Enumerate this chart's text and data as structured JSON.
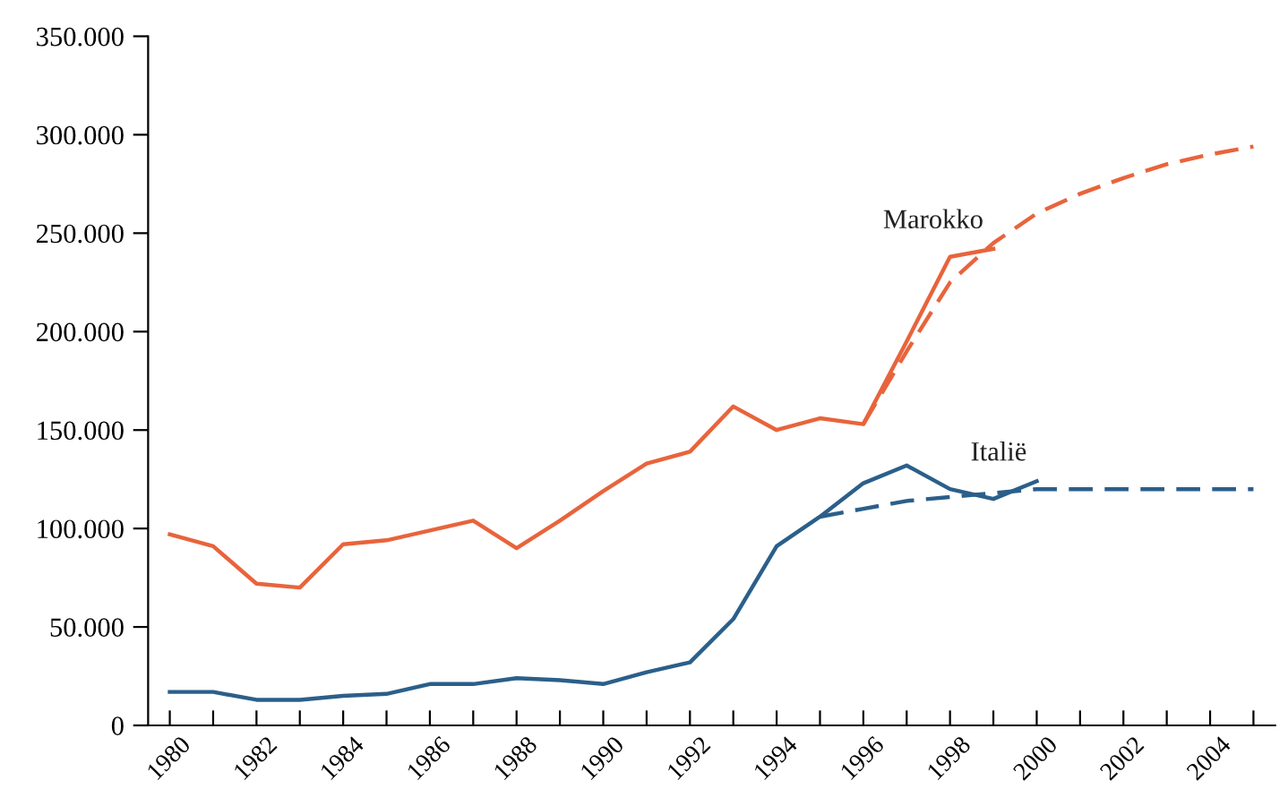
{
  "chart_data": {
    "type": "line",
    "x": [
      1980,
      1981,
      1982,
      1983,
      1984,
      1985,
      1986,
      1987,
      1988,
      1989,
      1990,
      1991,
      1992,
      1993,
      1994,
      1995,
      1996,
      1997,
      1998,
      1999,
      2000
    ],
    "series": [
      {
        "name": "Marokko",
        "color": "#e8643c",
        "line_style": "solid",
        "x": [
          1980,
          1981,
          1982,
          1983,
          1984,
          1985,
          1986,
          1987,
          1988,
          1989,
          1990,
          1991,
          1992,
          1993,
          1994,
          1995,
          1996,
          1997,
          1998,
          1999
        ],
        "values": [
          97000,
          91000,
          72000,
          70000,
          92000,
          94000,
          99000,
          104000,
          90000,
          104000,
          119000,
          133000,
          139000,
          162000,
          150000,
          156000,
          153000,
          195000,
          238000,
          242000
        ]
      },
      {
        "color": "#e8643c",
        "line_style": "dashed",
        "x": [
          1996,
          1997,
          1998,
          1999,
          2000,
          2001,
          2002,
          2003,
          2004,
          2005
        ],
        "values": [
          153000,
          190000,
          225000,
          245000,
          260000,
          270000,
          278000,
          285000,
          290000,
          294000
        ]
      },
      {
        "name": "Italië",
        "color": "#2b5f8a",
        "line_style": "solid",
        "values": [
          17000,
          17000,
          13000,
          13000,
          15000,
          16000,
          21000,
          21000,
          24000,
          23000,
          21000,
          27000,
          32000,
          54000,
          91000,
          106000,
          123000,
          132000,
          120000,
          115000,
          124000
        ]
      },
      {
        "color": "#2b5f8a",
        "line_style": "dashed",
        "x": [
          1995,
          1996,
          1997,
          1998,
          1999,
          2000,
          2005
        ],
        "values": [
          106000,
          110000,
          114000,
          116000,
          118000,
          120000,
          120000
        ]
      }
    ],
    "xlim": [
      1979.5,
      2005.5
    ],
    "xticks": [
      1980,
      {
        "value": 1981,
        "label": null
      },
      1982,
      {
        "value": 1983,
        "label": null
      },
      1984,
      {
        "value": 1985,
        "label": null
      },
      1986,
      {
        "value": 1987,
        "label": null
      },
      1988,
      {
        "value": 1989,
        "label": null
      },
      1990,
      {
        "value": 1991,
        "label": null
      },
      1992,
      {
        "value": 1993,
        "label": null
      },
      1994,
      {
        "value": 1995,
        "label": null
      },
      1996,
      {
        "value": 1997,
        "label": null
      },
      1998,
      {
        "value": 1999,
        "label": null
      },
      2000,
      {
        "value": 2001,
        "label": null
      },
      2002,
      {
        "value": 2003,
        "label": null
      },
      2004,
      {
        "value": 2005,
        "label": null
      }
    ],
    "ylim": [
      0,
      350000
    ],
    "yticks": [
      0,
      {
        "value": 50000,
        "label": "50.000"
      },
      {
        "value": 100000,
        "label": "100.000"
      },
      {
        "value": 150000,
        "label": "150.000"
      },
      {
        "value": 200000,
        "label": "200.000"
      },
      {
        "value": 250000,
        "label": "250.000"
      },
      {
        "value": 300000,
        "label": "300.000"
      },
      {
        "value": 350000,
        "label": "350.000"
      }
    ],
    "grid": false,
    "legend": false,
    "marker": "none"
  }
}
